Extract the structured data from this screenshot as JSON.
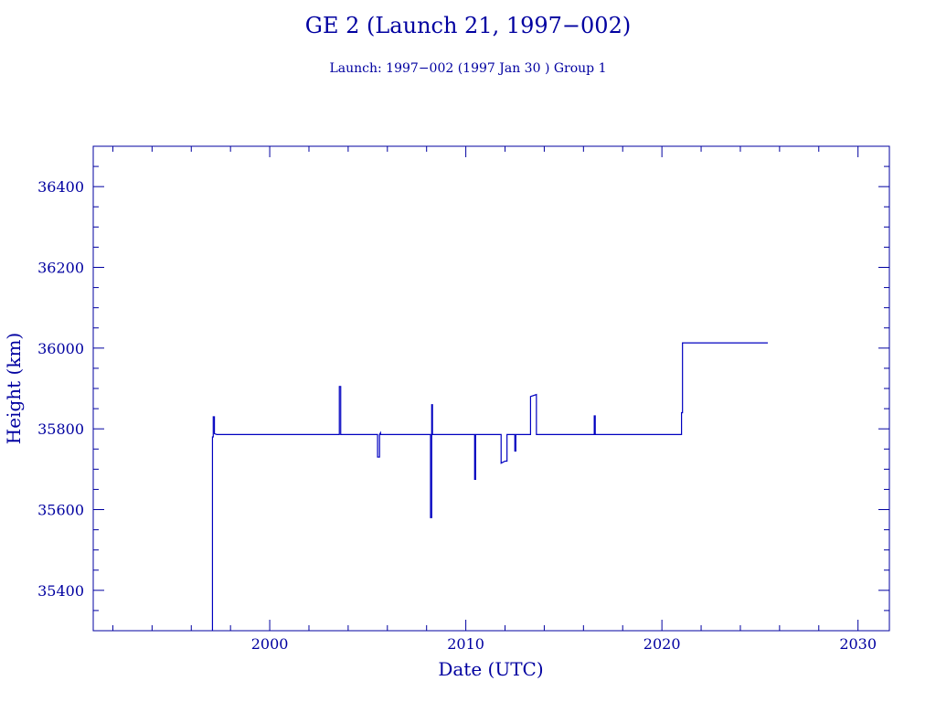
{
  "header": {
    "title": "GE 2 (Launch 21, 1997−002)",
    "subtitle": "Launch: 1997−002  (1997 Jan 30 )  Group 1"
  },
  "colors": {
    "axis": "#0000a0",
    "series": "#0000c0"
  },
  "chart_data": {
    "type": "line",
    "title": "GE 2 (Launch 21, 1997−002)",
    "subtitle": "Launch: 1997−002  (1997 Jan 30 )  Group 1",
    "xlabel": "Date (UTC)",
    "ylabel": "Height (km)",
    "xlim": [
      1991.0,
      2031.6
    ],
    "ylim": [
      35300,
      36500
    ],
    "x_ticks": [
      2000,
      2010,
      2020,
      2030
    ],
    "x_tick_labels": [
      "2000",
      "2010",
      "2020",
      "2030"
    ],
    "y_ticks": [
      35400,
      35600,
      35800,
      36000,
      36200,
      36400
    ],
    "y_tick_labels": [
      "35400",
      "35600",
      "35800",
      "36000",
      "36200",
      "36400"
    ],
    "grid": false,
    "series": [
      {
        "x": [
          1997.08,
          1997.08,
          1997.12,
          1997.12,
          1997.18,
          1997.18,
          1997.3,
          2003.55,
          2003.55,
          2003.62,
          2003.62,
          2005.5,
          2005.5,
          2005.6,
          2005.6,
          2005.65,
          2005.65,
          2008.2,
          2008.2,
          2008.26,
          2008.26,
          2008.3,
          2008.3,
          2010.45,
          2010.45,
          2010.5,
          2010.5,
          2011.8,
          2011.8,
          2012.0,
          2012.1,
          2012.1,
          2012.5,
          2012.5,
          2012.55,
          2012.55,
          2013.3,
          2013.3,
          2013.6,
          2013.6,
          2016.55,
          2016.55,
          2016.6,
          2016.6,
          2021.0,
          2021.0,
          2021.02,
          2021.05,
          2021.05,
          2025.4
        ],
        "y": [
          35300,
          35780,
          35780,
          35830,
          35830,
          35788,
          35786,
          35786,
          35905,
          35905,
          35786,
          35786,
          35730,
          35730,
          35786,
          35790,
          35786,
          35786,
          35580,
          35580,
          35860,
          35860,
          35786,
          35786,
          35675,
          35675,
          35786,
          35786,
          35715,
          35720,
          35720,
          35786,
          35786,
          35745,
          35745,
          35786,
          35786,
          35880,
          35885,
          35786,
          35786,
          35832,
          35832,
          35786,
          35786,
          35840,
          35840,
          35840,
          36013,
          36013
        ]
      }
    ]
  }
}
